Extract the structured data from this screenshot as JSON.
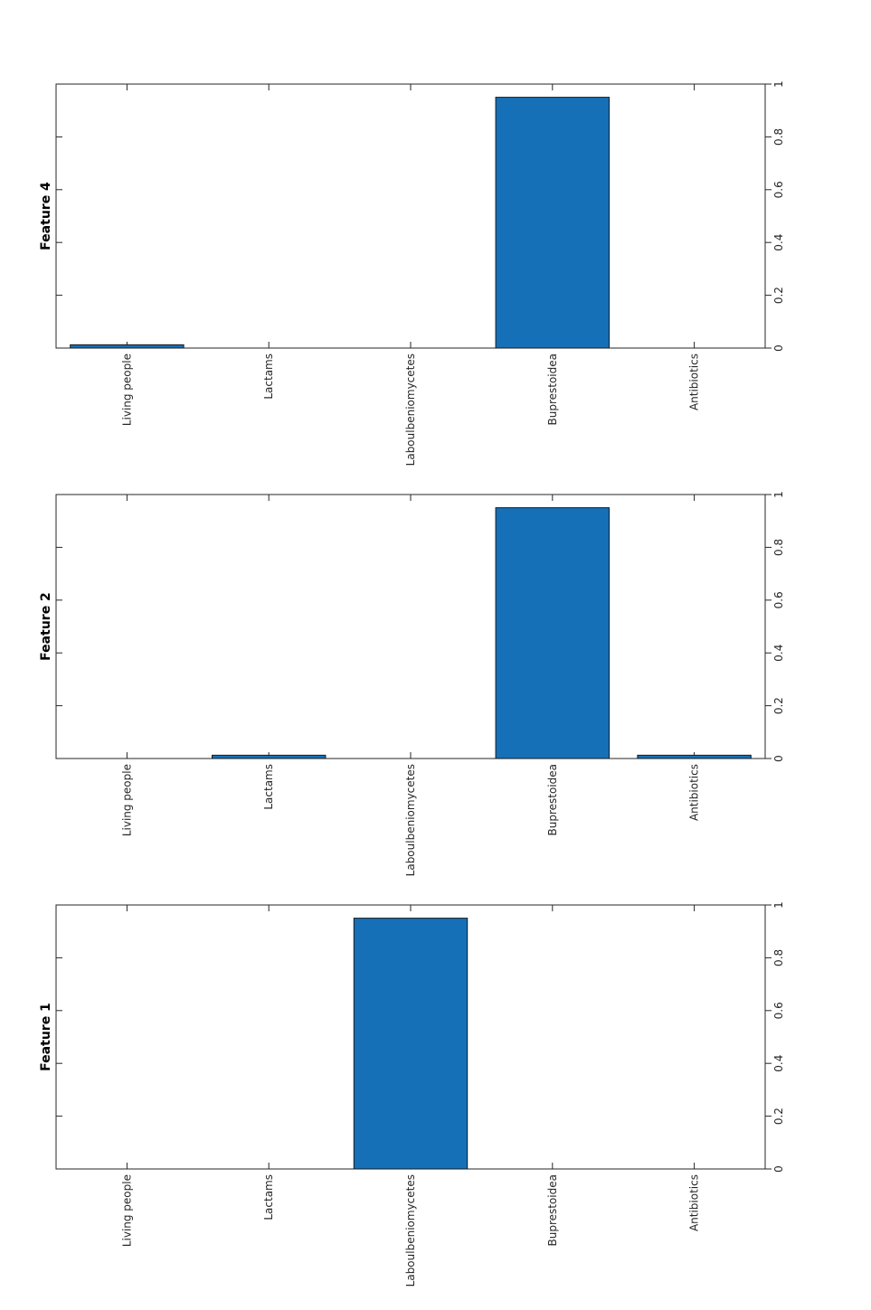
{
  "chart_data": [
    {
      "type": "bar",
      "title": "Feature 4",
      "categories": [
        "Living people",
        "Lactams",
        "Laboulbeniomycetes",
        "Buprestoidea",
        "Antibiotics"
      ],
      "values": [
        0.0125,
        0,
        0,
        0.95,
        0
      ],
      "ylim": [
        0,
        1
      ],
      "yticks": [
        "0",
        "0.2",
        "0.4",
        "0.6",
        "0.8",
        "1"
      ],
      "color": "#1570b8"
    },
    {
      "type": "bar",
      "title": "Feature 2",
      "categories": [
        "Living people",
        "Lactams",
        "Laboulbeniomycetes",
        "Buprestoidea",
        "Antibiotics"
      ],
      "values": [
        0,
        0.0125,
        0,
        0.95,
        0.0125
      ],
      "ylim": [
        0,
        1
      ],
      "yticks": [
        "0",
        "0.2",
        "0.4",
        "0.6",
        "0.8",
        "1"
      ],
      "color": "#1570b8"
    },
    {
      "type": "bar",
      "title": "Feature 1",
      "categories": [
        "Living people",
        "Lactams",
        "Laboulbeniomycetes",
        "Buprestoidea",
        "Antibiotics"
      ],
      "values": [
        0,
        0,
        0.95,
        0,
        0
      ],
      "ylim": [
        0,
        1
      ],
      "yticks": [
        "0",
        "0.2",
        "0.4",
        "0.6",
        "0.8",
        "1"
      ],
      "color": "#1570b8"
    }
  ]
}
